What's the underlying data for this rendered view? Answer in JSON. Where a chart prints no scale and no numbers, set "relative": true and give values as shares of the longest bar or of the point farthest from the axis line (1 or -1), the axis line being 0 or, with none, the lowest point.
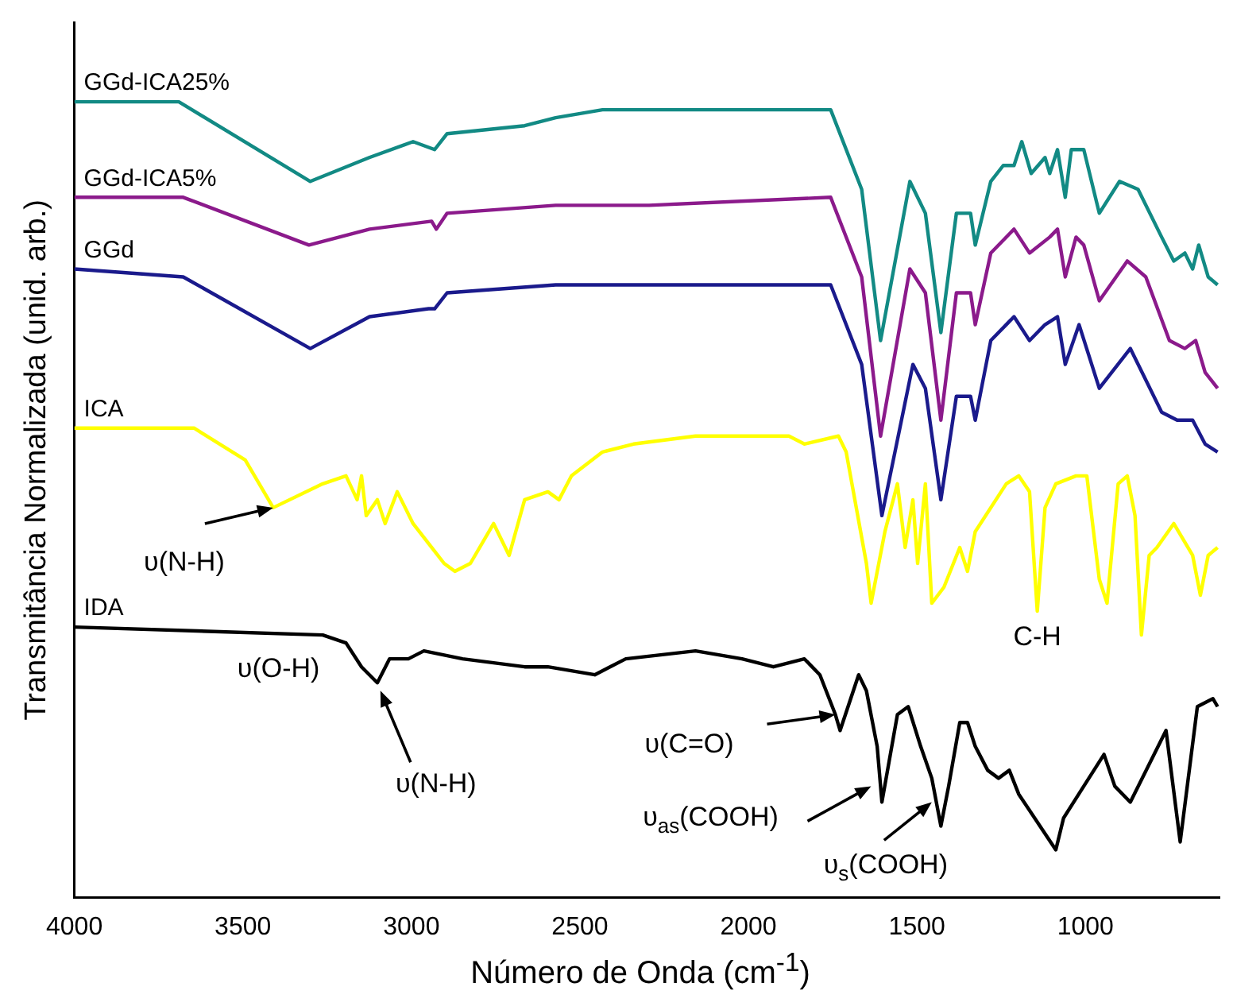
{
  "chart_data": {
    "type": "line",
    "xlabel": "Número de Onda (cm$^{-1}$)",
    "ylabel": "Transmitância Normalizada (unid. arb.)",
    "relative": true,
    "xlim": [
      4000,
      600
    ],
    "xticks": [
      4000,
      3500,
      3000,
      2500,
      2000,
      1500,
      1000
    ],
    "grid": false,
    "legend": false,
    "marker": "none",
    "line_style": "solid",
    "series": [
      {
        "name": "GGd-ICA25%",
        "color": "#128a84",
        "x": [
          4000,
          3690,
          3300,
          3125,
          2995,
          2931,
          2894,
          2664,
          2572,
          2433,
          2295,
          1756,
          1664,
          1608,
          1521,
          1475,
          1429,
          1383,
          1364,
          1341,
          1327,
          1281,
          1244,
          1212,
          1189,
          1161,
          1120,
          1106,
          1083,
          1060,
          1042,
          1005,
          959,
          899,
          844,
          774,
          738,
          705,
          682,
          664,
          636,
          608
        ],
        "values": [
          1.0,
          1.0,
          0.9,
          0.93,
          0.95,
          0.94,
          0.96,
          0.97,
          0.98,
          0.99,
          0.99,
          0.99,
          0.89,
          0.7,
          0.9,
          0.86,
          0.71,
          0.86,
          0.86,
          0.86,
          0.82,
          0.9,
          0.92,
          0.92,
          0.95,
          0.91,
          0.93,
          0.91,
          0.94,
          0.88,
          0.94,
          0.94,
          0.86,
          0.9,
          0.89,
          0.83,
          0.8,
          0.81,
          0.79,
          0.82,
          0.78,
          0.77
        ]
      },
      {
        "name": "GGd-ICA5%",
        "color": "#8b1a8b",
        "x": [
          4000,
          3677,
          3304,
          3124,
          2940,
          2926,
          2894,
          2572,
          2295,
          1756,
          1664,
          1608,
          1521,
          1475,
          1429,
          1383,
          1341,
          1327,
          1281,
          1212,
          1166,
          1106,
          1083,
          1060,
          1028,
          1005,
          959,
          876,
          821,
          751,
          705,
          673,
          645,
          608
        ],
        "values": [
          0.88,
          0.88,
          0.82,
          0.84,
          0.85,
          0.84,
          0.86,
          0.87,
          0.87,
          0.88,
          0.78,
          0.58,
          0.79,
          0.76,
          0.6,
          0.76,
          0.76,
          0.72,
          0.81,
          0.84,
          0.81,
          0.83,
          0.84,
          0.78,
          0.83,
          0.82,
          0.75,
          0.8,
          0.78,
          0.7,
          0.69,
          0.7,
          0.66,
          0.64
        ]
      },
      {
        "name": "GGd",
        "color": "#1a1a8c",
        "x": [
          4000,
          3677,
          3300,
          3124,
          2949,
          2931,
          2894,
          2572,
          2295,
          1756,
          1664,
          1604,
          1512,
          1475,
          1429,
          1383,
          1341,
          1327,
          1281,
          1212,
          1166,
          1120,
          1083,
          1060,
          1019,
          959,
          867,
          774,
          728,
          682,
          645,
          608
        ],
        "values": [
          0.79,
          0.78,
          0.69,
          0.73,
          0.74,
          0.74,
          0.76,
          0.77,
          0.77,
          0.77,
          0.67,
          0.48,
          0.67,
          0.64,
          0.5,
          0.63,
          0.63,
          0.6,
          0.7,
          0.73,
          0.7,
          0.72,
          0.73,
          0.67,
          0.72,
          0.64,
          0.69,
          0.61,
          0.6,
          0.6,
          0.57,
          0.56
        ]
      },
      {
        "name": "ICA",
        "color": "#ffff00",
        "x": [
          4000,
          3645,
          3493,
          3410,
          3263,
          3194,
          3161,
          3148,
          3134,
          3101,
          3078,
          3042,
          2995,
          2940,
          2903,
          2871,
          2825,
          2756,
          2710,
          2664,
          2595,
          2562,
          2525,
          2433,
          2341,
          2157,
          1880,
          1834,
          1733,
          1710,
          1650,
          1636,
          1595,
          1558,
          1535,
          1512,
          1498,
          1475,
          1456,
          1420,
          1373,
          1350,
          1327,
          1235,
          1198,
          1166,
          1143,
          1120,
          1088,
          1028,
          996,
          959,
          936,
          903,
          876,
          853,
          834,
          811,
          788,
          738,
          682,
          659,
          636,
          608
        ],
        "values": [
          0.59,
          0.59,
          0.55,
          0.49,
          0.52,
          0.53,
          0.5,
          0.53,
          0.48,
          0.5,
          0.47,
          0.51,
          0.47,
          0.44,
          0.42,
          0.41,
          0.42,
          0.47,
          0.43,
          0.5,
          0.51,
          0.5,
          0.53,
          0.56,
          0.57,
          0.58,
          0.58,
          0.57,
          0.58,
          0.56,
          0.42,
          0.37,
          0.46,
          0.52,
          0.44,
          0.5,
          0.42,
          0.52,
          0.37,
          0.39,
          0.44,
          0.41,
          0.46,
          0.52,
          0.53,
          0.51,
          0.36,
          0.49,
          0.52,
          0.53,
          0.53,
          0.4,
          0.37,
          0.52,
          0.53,
          0.48,
          0.33,
          0.43,
          0.44,
          0.47,
          0.43,
          0.38,
          0.43,
          0.44
        ]
      },
      {
        "name": "IDA",
        "color": "#000000",
        "x": [
          4000,
          3263,
          3194,
          3148,
          3101,
          3065,
          3009,
          2963,
          2848,
          2664,
          2595,
          2456,
          2364,
          2157,
          2019,
          1926,
          1834,
          1788,
          1742,
          1728,
          1673,
          1650,
          1618,
          1604,
          1558,
          1526,
          1489,
          1456,
          1429,
          1406,
          1373,
          1350,
          1327,
          1290,
          1258,
          1226,
          1198,
          1088,
          1065,
          1005,
          945,
          913,
          867,
          761,
          719,
          668,
          622,
          608
        ],
        "values": [
          0.34,
          0.33,
          0.32,
          0.29,
          0.27,
          0.3,
          0.3,
          0.31,
          0.3,
          0.29,
          0.29,
          0.28,
          0.3,
          0.31,
          0.3,
          0.29,
          0.3,
          0.28,
          0.23,
          0.21,
          0.28,
          0.26,
          0.19,
          0.12,
          0.23,
          0.24,
          0.19,
          0.15,
          0.09,
          0.14,
          0.22,
          0.22,
          0.19,
          0.16,
          0.15,
          0.16,
          0.13,
          0.06,
          0.1,
          0.14,
          0.18,
          0.14,
          0.12,
          0.21,
          0.07,
          0.24,
          0.25,
          0.24
        ]
      }
    ],
    "annotations": [
      {
        "text": "υ(N-H)",
        "x": 3410,
        "y": 0.49
      },
      {
        "text": "υ(O-H)",
        "x": 3300,
        "y": 0.33
      },
      {
        "text": "υ(N-H)",
        "x": 3092,
        "y": 0.26
      },
      {
        "text": "υ(C=O)",
        "x": 1742,
        "y": 0.23
      },
      {
        "text": "υ$_{as}$(COOH)",
        "x": 1636,
        "y": 0.14
      },
      {
        "text": "υ$_{s}$(COOH)",
        "x": 1456,
        "y": 0.12
      },
      {
        "text": "C-H",
        "x": 1143,
        "y": 0.36
      }
    ]
  }
}
